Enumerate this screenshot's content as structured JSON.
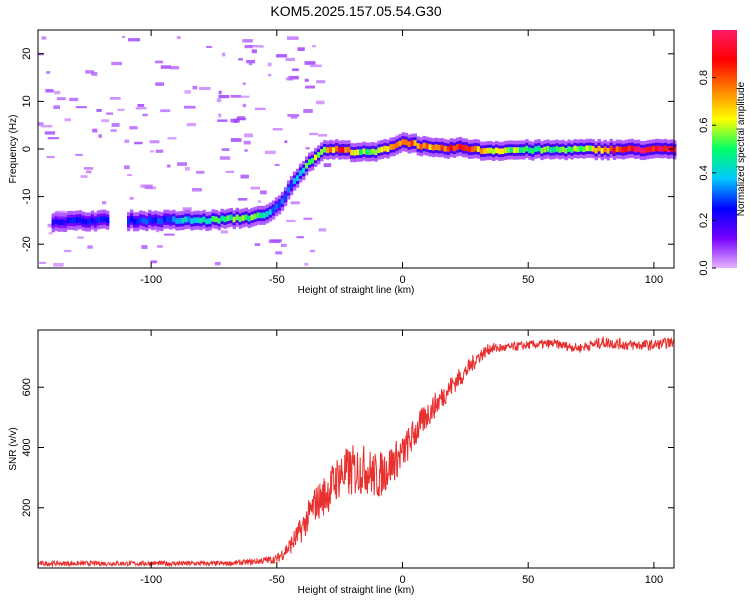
{
  "title": "KOM5.2025.157.05.54.G30",
  "chart_data": [
    {
      "type": "heatmap",
      "name": "spectrogram",
      "xlabel": "Height of straight line (km)",
      "ylabel": "Frequency (Hz)",
      "xlim": [
        -145,
        108
      ],
      "ylim": [
        -25,
        25
      ],
      "xticks": [
        -100,
        -50,
        0,
        50,
        100
      ],
      "yticks": [
        -20,
        -10,
        0,
        10,
        20
      ],
      "colorbar": {
        "label": "Normalized spectral amplitude",
        "range": [
          0,
          1
        ],
        "ticks": [
          "0.0",
          "0.2",
          "0.4",
          "0.6",
          "0.8"
        ],
        "tick_values": [
          0.0,
          0.2,
          0.4,
          0.6,
          0.8
        ],
        "colors": [
          "#e6b3ff",
          "#7700ff",
          "#0000ff",
          "#00c8ff",
          "#00ff66",
          "#ffff00",
          "#ff8000",
          "#ff0000",
          "#ff1a66"
        ]
      },
      "ridge": [
        {
          "x": -135,
          "y": -15.2,
          "a": 0.22
        },
        {
          "x": -128,
          "y": -15.1,
          "a": 0.28
        },
        {
          "x": -120,
          "y": -15.0,
          "a": 0.24
        },
        {
          "x": -105,
          "y": -15.0,
          "a": 0.28
        },
        {
          "x": -95,
          "y": -15.0,
          "a": 0.3
        },
        {
          "x": -85,
          "y": -15.0,
          "a": 0.4
        },
        {
          "x": -78,
          "y": -15.0,
          "a": 0.48
        },
        {
          "x": -70,
          "y": -14.7,
          "a": 0.52
        },
        {
          "x": -62,
          "y": -14.4,
          "a": 0.55
        },
        {
          "x": -55,
          "y": -14.0,
          "a": 0.42
        },
        {
          "x": -51,
          "y": -12.5,
          "a": 0.3
        },
        {
          "x": -48,
          "y": -10.5,
          "a": 0.3
        },
        {
          "x": -45,
          "y": -8.0,
          "a": 0.32
        },
        {
          "x": -42,
          "y": -5.5,
          "a": 0.38
        },
        {
          "x": -38,
          "y": -3.0,
          "a": 0.5
        },
        {
          "x": -34,
          "y": -1.0,
          "a": 0.58
        },
        {
          "x": -30,
          "y": 0.0,
          "a": 0.65
        },
        {
          "x": -25,
          "y": -0.2,
          "a": 0.85
        },
        {
          "x": -20,
          "y": -0.5,
          "a": 0.62
        },
        {
          "x": -15,
          "y": -0.8,
          "a": 0.5
        },
        {
          "x": -10,
          "y": -0.5,
          "a": 0.55
        },
        {
          "x": -5,
          "y": 0.5,
          "a": 0.65
        },
        {
          "x": 0,
          "y": 1.5,
          "a": 0.9
        },
        {
          "x": 5,
          "y": 1.0,
          "a": 0.72
        },
        {
          "x": 10,
          "y": 0.2,
          "a": 0.7
        },
        {
          "x": 15,
          "y": 0.0,
          "a": 0.85
        },
        {
          "x": 20,
          "y": 0.2,
          "a": 0.78
        },
        {
          "x": 25,
          "y": 0.3,
          "a": 0.88
        },
        {
          "x": 30,
          "y": -0.3,
          "a": 0.7
        },
        {
          "x": 35,
          "y": -0.3,
          "a": 0.6
        },
        {
          "x": 45,
          "y": -0.2,
          "a": 0.55
        },
        {
          "x": 55,
          "y": -0.2,
          "a": 0.5
        },
        {
          "x": 65,
          "y": -0.1,
          "a": 0.5
        },
        {
          "x": 75,
          "y": -0.1,
          "a": 0.6
        },
        {
          "x": 85,
          "y": -0.1,
          "a": 0.88
        },
        {
          "x": 95,
          "y": -0.1,
          "a": 0.92
        },
        {
          "x": 108,
          "y": -0.1,
          "a": 0.95
        }
      ]
    },
    {
      "type": "line",
      "name": "snr",
      "xlabel": "Height of straight line (km)",
      "ylabel": "SNR (v/v)",
      "xlim": [
        -145,
        108
      ],
      "ylim": [
        0,
        790
      ],
      "xticks": [
        -100,
        -50,
        0,
        50,
        100
      ],
      "yticks": [
        200,
        400,
        600
      ],
      "color": "#e8302f",
      "x": [
        -145,
        -130,
        -110,
        -90,
        -70,
        -60,
        -55,
        -50,
        -45,
        -40,
        -35,
        -30,
        -25,
        -20,
        -15,
        -10,
        -5,
        0,
        5,
        10,
        15,
        20,
        25,
        30,
        35,
        40,
        50,
        60,
        70,
        80,
        90,
        100,
        108
      ],
      "y": [
        15,
        15,
        15,
        15,
        15,
        20,
        25,
        30,
        70,
        130,
        210,
        250,
        310,
        320,
        330,
        300,
        340,
        380,
        450,
        510,
        560,
        610,
        650,
        700,
        730,
        730,
        740,
        745,
        730,
        750,
        740,
        740,
        750
      ],
      "noise": [
        8,
        8,
        8,
        8,
        8,
        10,
        12,
        15,
        30,
        45,
        60,
        70,
        80,
        90,
        80,
        80,
        70,
        60,
        55,
        45,
        40,
        35,
        30,
        25,
        18,
        15,
        15,
        15,
        15,
        20,
        18,
        18,
        18
      ]
    }
  ]
}
